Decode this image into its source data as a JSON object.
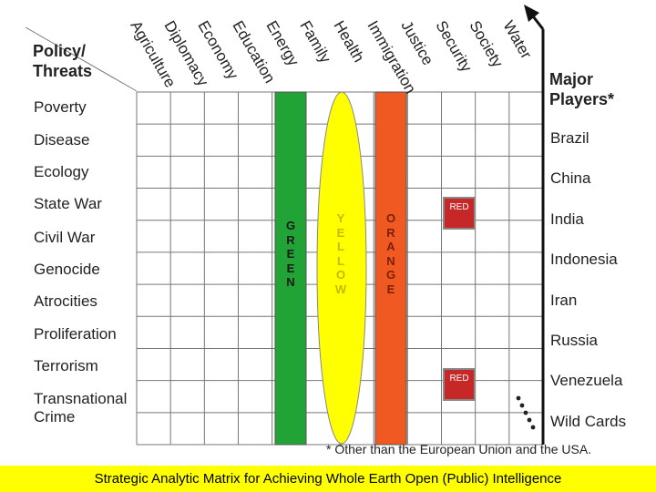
{
  "corner_title": "Policy/\nThreats",
  "players_title": "Major\nPlayers*",
  "columns": [
    "Agriculture",
    "Diplomacy",
    "Economy",
    "Education",
    "Energy",
    "Family",
    "Health",
    "Immigration",
    "Justice",
    "Security",
    "Society",
    "Water"
  ],
  "threats": [
    "Poverty",
    "Disease",
    "Ecology",
    "State War",
    "Civil War",
    "Genocide",
    "Atrocities",
    "Proliferation",
    "Terrorism",
    "Transnational\nCrime"
  ],
  "players": [
    "Brazil",
    "China",
    "India",
    "Indonesia",
    "Iran",
    "Russia",
    "Venezuela",
    "Wild Cards"
  ],
  "bands": {
    "green": {
      "letters": "GREEN",
      "color": "#22a336",
      "text_color": "#1a1a1a"
    },
    "yellow": {
      "letters": "YELLOW",
      "color": "#ffff00",
      "text_color": "#c8b800"
    },
    "orange": {
      "letters": "ORANGE",
      "color": "#f05a22",
      "text_color": "#7a1f00"
    }
  },
  "red_boxes": [
    {
      "label": "RED",
      "color": "#c62828"
    },
    {
      "label": "RED",
      "color": "#c62828"
    }
  ],
  "footnote": "* Other than the European Union and the USA.",
  "caption": "Strategic Analytic Matrix for Achieving Whole Earth Open (Public) Intelligence",
  "caption_color": "#ffff00"
}
